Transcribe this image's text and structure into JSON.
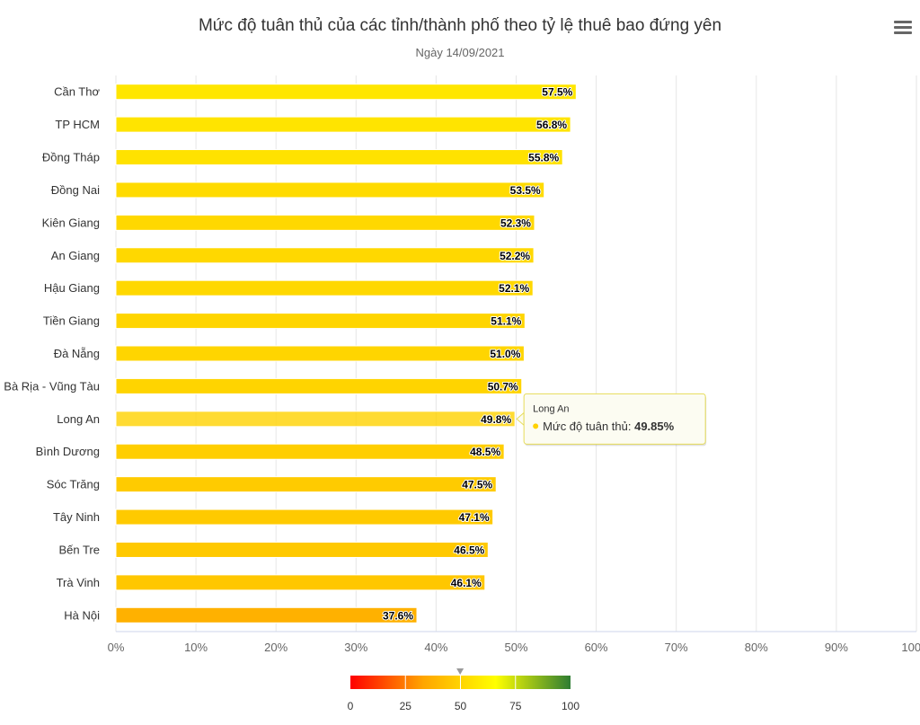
{
  "chart_data": {
    "type": "bar",
    "orientation": "horizontal",
    "title": "Mức độ tuân thủ của các tỉnh/thành phố theo tỷ lệ thuê bao đứng yên",
    "subtitle": "Ngày 14/09/2021",
    "categories": [
      "Cần Thơ",
      "TP HCM",
      "Đồng Tháp",
      "Đồng Nai",
      "Kiên Giang",
      "An Giang",
      "Hậu Giang",
      "Tiền Giang",
      "Đà Nẵng",
      "Bà Rịa - Vũng Tàu",
      "Long An",
      "Bình Dương",
      "Sóc Trăng",
      "Tây Ninh",
      "Bến Tre",
      "Trà Vinh",
      "Hà Nội"
    ],
    "values": [
      57.5,
      56.8,
      55.8,
      53.5,
      52.3,
      52.2,
      52.1,
      51.1,
      51.0,
      50.7,
      49.85,
      48.5,
      47.5,
      47.1,
      46.5,
      46.1,
      37.6
    ],
    "data_labels": [
      "57.5%",
      "56.8%",
      "55.8%",
      "53.5%",
      "52.3%",
      "52.2%",
      "52.1%",
      "51.1%",
      "51.0%",
      "50.7%",
      "49.8%",
      "48.5%",
      "47.5%",
      "47.1%",
      "46.5%",
      "46.1%",
      "37.6%"
    ],
    "xlim": [
      0,
      100
    ],
    "x_ticks": [
      "0%",
      "10%",
      "20%",
      "30%",
      "40%",
      "50%",
      "60%",
      "70%",
      "80%",
      "90%",
      "100%"
    ],
    "grid": true,
    "color_axis": {
      "min": 0,
      "max": 100,
      "ticks": [
        "0",
        "25",
        "50",
        "75",
        "100"
      ],
      "colors": [
        "#ff0000",
        "#ffa500",
        "#ffff00",
        "#2e7d32"
      ],
      "marker_value": 49.85
    },
    "tooltip": {
      "category": "Long An",
      "series_name": "Mức độ tuân thủ",
      "value": "49.85%",
      "highlight_index": 10
    }
  },
  "ui": {
    "menu_icon": "hamburger-menu-icon"
  }
}
